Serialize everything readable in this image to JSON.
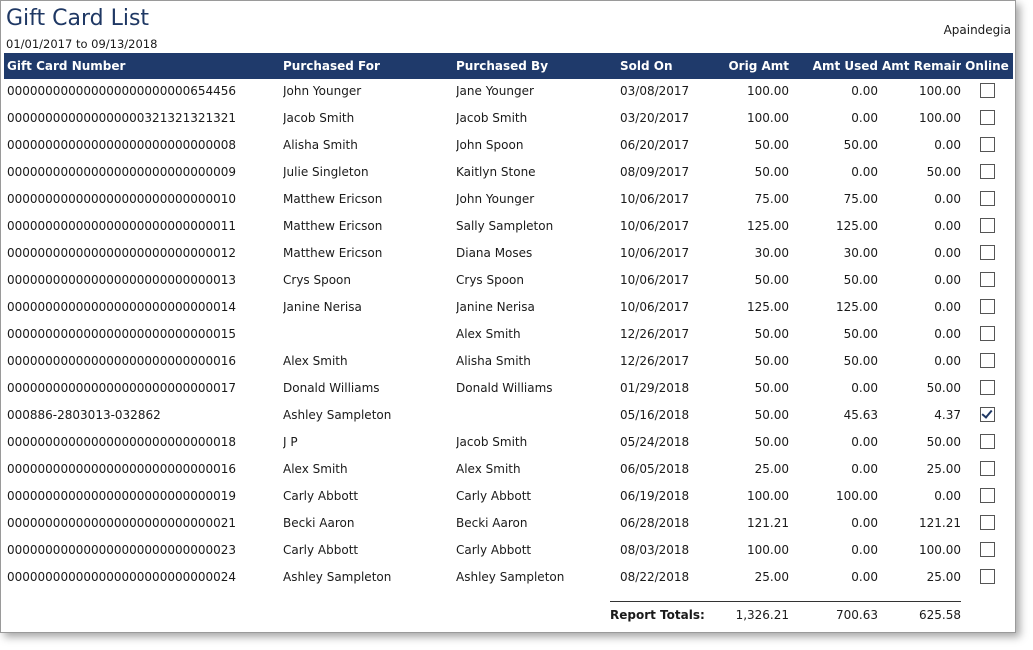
{
  "report": {
    "title": "Gift Card List",
    "date_range": "01/01/2017 to 09/13/2018",
    "company": "Apaindegia"
  },
  "columns": {
    "number": "Gift Card Number",
    "purchased_for": "Purchased For",
    "purchased_by": "Purchased By",
    "sold_on": "Sold On",
    "orig_amt": "Orig Amt",
    "amt_used": "Amt Used",
    "amt_remain": "Amt Remain",
    "online": "Online"
  },
  "rows": [
    {
      "number": "000000000000000000000000654456",
      "for": "John Younger",
      "by": "Jane Younger",
      "sold": "03/08/2017",
      "orig": "100.00",
      "used": "0.00",
      "remain": "100.00",
      "online": false
    },
    {
      "number": "000000000000000000321321321321",
      "for": "Jacob Smith",
      "by": "Jacob Smith",
      "sold": "03/20/2017",
      "orig": "100.00",
      "used": "0.00",
      "remain": "100.00",
      "online": false
    },
    {
      "number": "000000000000000000000000000008",
      "for": "Alisha Smith",
      "by": "John Spoon",
      "sold": "06/20/2017",
      "orig": "50.00",
      "used": "50.00",
      "remain": "0.00",
      "online": false
    },
    {
      "number": "000000000000000000000000000009",
      "for": "Julie Singleton",
      "by": "Kaitlyn Stone",
      "sold": "08/09/2017",
      "orig": "50.00",
      "used": "0.00",
      "remain": "50.00",
      "online": false
    },
    {
      "number": "000000000000000000000000000010",
      "for": "Matthew Ericson",
      "by": "John Younger",
      "sold": "10/06/2017",
      "orig": "75.00",
      "used": "75.00",
      "remain": "0.00",
      "online": false
    },
    {
      "number": "000000000000000000000000000011",
      "for": "Matthew Ericson",
      "by": "Sally Sampleton",
      "sold": "10/06/2017",
      "orig": "125.00",
      "used": "125.00",
      "remain": "0.00",
      "online": false
    },
    {
      "number": "000000000000000000000000000012",
      "for": "Matthew Ericson",
      "by": "Diana Moses",
      "sold": "10/06/2017",
      "orig": "30.00",
      "used": "30.00",
      "remain": "0.00",
      "online": false
    },
    {
      "number": "000000000000000000000000000013",
      "for": "Crys Spoon",
      "by": "Crys Spoon",
      "sold": "10/06/2017",
      "orig": "50.00",
      "used": "50.00",
      "remain": "0.00",
      "online": false
    },
    {
      "number": "000000000000000000000000000014",
      "for": "Janine Nerisa",
      "by": "Janine Nerisa",
      "sold": "10/06/2017",
      "orig": "125.00",
      "used": "125.00",
      "remain": "0.00",
      "online": false
    },
    {
      "number": "000000000000000000000000000015",
      "for": "",
      "by": "Alex Smith",
      "sold": "12/26/2017",
      "orig": "50.00",
      "used": "50.00",
      "remain": "0.00",
      "online": false
    },
    {
      "number": "000000000000000000000000000016",
      "for": "Alex Smith",
      "by": "Alisha Smith",
      "sold": "12/26/2017",
      "orig": "50.00",
      "used": "50.00",
      "remain": "0.00",
      "online": false
    },
    {
      "number": "000000000000000000000000000017",
      "for": "Donald Williams",
      "by": "Donald Williams",
      "sold": "01/29/2018",
      "orig": "50.00",
      "used": "0.00",
      "remain": "50.00",
      "online": false
    },
    {
      "number": "000886-2803013-032862",
      "for": "Ashley Sampleton",
      "by": "",
      "sold": "05/16/2018",
      "orig": "50.00",
      "used": "45.63",
      "remain": "4.37",
      "online": true
    },
    {
      "number": "000000000000000000000000000018",
      "for": "J P",
      "by": "Jacob Smith",
      "sold": "05/24/2018",
      "orig": "50.00",
      "used": "0.00",
      "remain": "50.00",
      "online": false
    },
    {
      "number": "000000000000000000000000000016",
      "for": "Alex Smith",
      "by": "Alex Smith",
      "sold": "06/05/2018",
      "orig": "25.00",
      "used": "0.00",
      "remain": "25.00",
      "online": false
    },
    {
      "number": "000000000000000000000000000019",
      "for": "Carly Abbott",
      "by": "Carly Abbott",
      "sold": "06/19/2018",
      "orig": "100.00",
      "used": "100.00",
      "remain": "0.00",
      "online": false
    },
    {
      "number": "000000000000000000000000000021",
      "for": "Becki Aaron",
      "by": "Becki Aaron",
      "sold": "06/28/2018",
      "orig": "121.21",
      "used": "0.00",
      "remain": "121.21",
      "online": false
    },
    {
      "number": "000000000000000000000000000023",
      "for": "Carly Abbott",
      "by": "Carly Abbott",
      "sold": "08/03/2018",
      "orig": "100.00",
      "used": "0.00",
      "remain": "100.00",
      "online": false
    },
    {
      "number": "000000000000000000000000000024",
      "for": "Ashley Sampleton",
      "by": "Ashley Sampleton",
      "sold": "08/22/2018",
      "orig": "25.00",
      "used": "0.00",
      "remain": "25.00",
      "online": false
    }
  ],
  "totals": {
    "label": "Report Totals:",
    "orig": "1,326.21",
    "used": "700.63",
    "remain": "625.58"
  },
  "colors": {
    "header_bg": "#1f3a6b",
    "title": "#1f3864"
  },
  "icons": {
    "checkbox": "checkbox-icon",
    "checked": "checkmark-icon"
  }
}
